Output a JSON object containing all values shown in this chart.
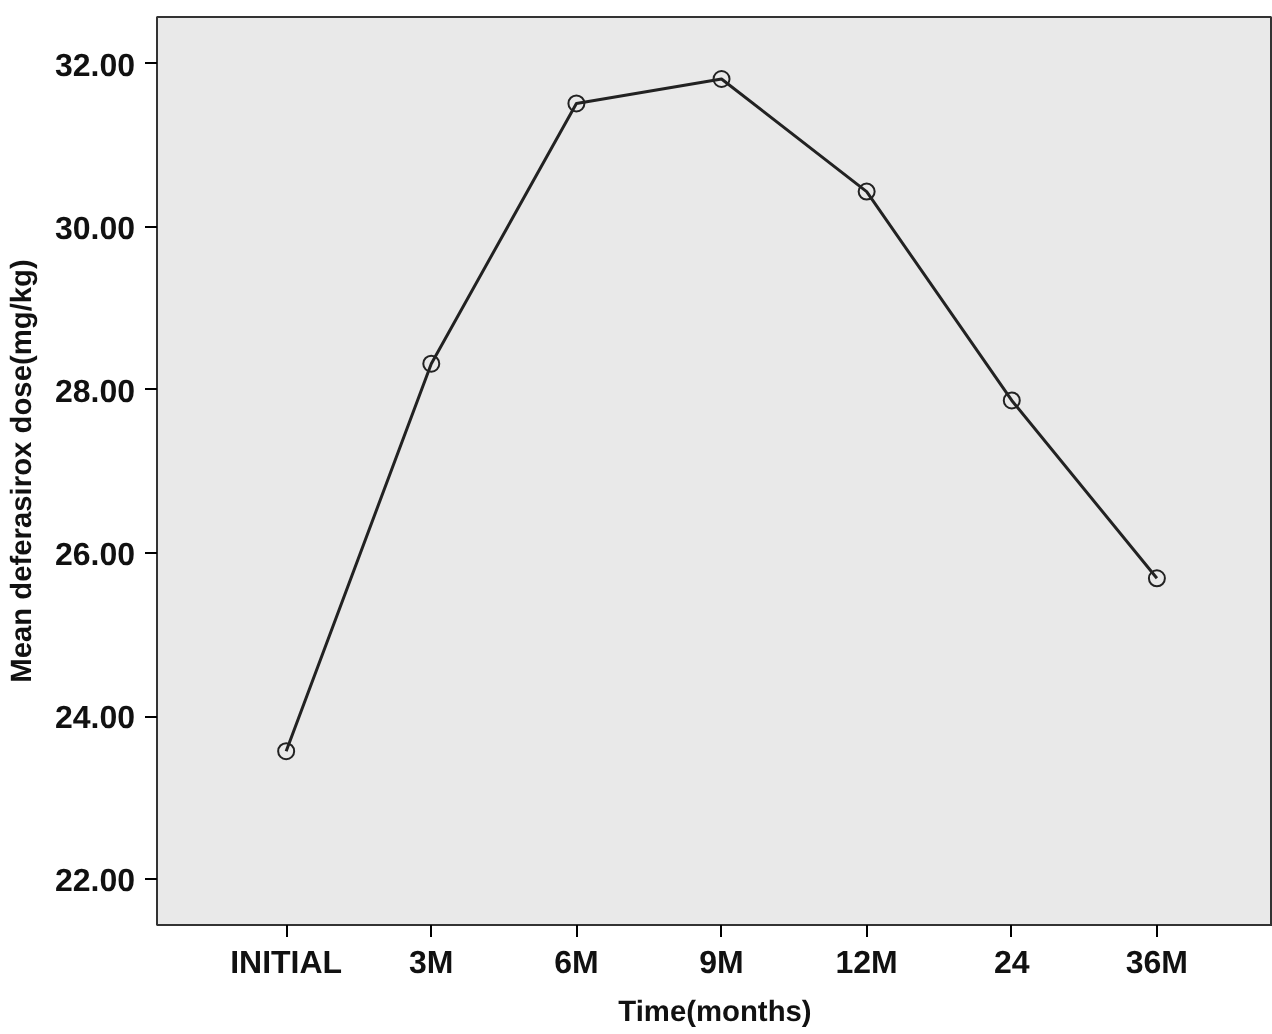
{
  "chart_data": {
    "type": "line",
    "xlabel": "Time(months)",
    "ylabel": "Mean deferasirox dose(mg/kg)",
    "categories": [
      "INITIAL",
      "3M",
      "6M",
      "9M",
      "12M",
      "24",
      "36M"
    ],
    "series": [
      {
        "color": "#222222",
        "values": [
          23.57,
          28.32,
          31.51,
          31.81,
          30.43,
          27.87,
          25.69
        ]
      }
    ],
    "ylim": [
      21.44,
      32.57
    ],
    "yticks": [
      {
        "value": 22,
        "label": "22.00"
      },
      {
        "value": 24,
        "label": "24.00"
      },
      {
        "value": 26,
        "label": "26.00"
      },
      {
        "value": 28,
        "label": "28.00"
      },
      {
        "value": 30,
        "label": "30.00"
      },
      {
        "value": 32,
        "label": "32.00"
      }
    ],
    "marker": "circle",
    "line_style": "solid",
    "grid": false
  }
}
